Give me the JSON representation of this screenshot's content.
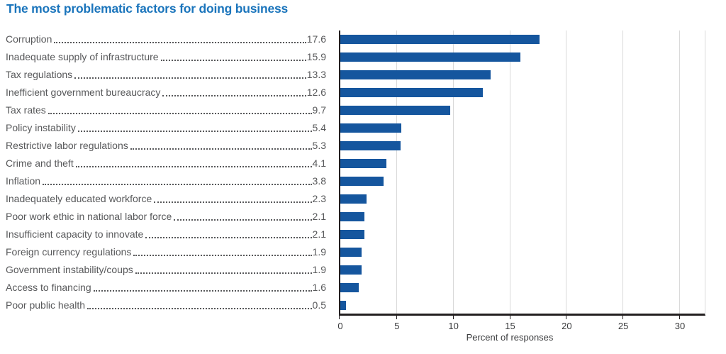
{
  "title": "The most problematic factors for doing business",
  "colors": {
    "title_blue": "#1B75BC",
    "bar_blue": "#15569E",
    "label_gray": "#57585A",
    "axis_black": "#231F20",
    "grid_gray": "#D9D9D9"
  },
  "chart_data": {
    "type": "bar",
    "orientation": "horizontal",
    "title": "The most problematic factors for doing business",
    "xlabel": "Percent of responses",
    "ylabel": "",
    "xlim": [
      0,
      30
    ],
    "xticks": [
      0,
      5,
      10,
      15,
      20,
      25,
      30
    ],
    "grid": true,
    "legend": false,
    "categories": [
      "Corruption",
      "Inadequate supply of infrastructure",
      "Tax regulations",
      "Inefficient government bureaucracy",
      "Tax rates",
      "Policy instability",
      "Restrictive labor regulations",
      "Crime and theft",
      "Inflation",
      "Inadequately educated workforce",
      "Poor work ethic in national labor force",
      "Insufficient capacity to innovate",
      "Foreign currency regulations",
      "Government instability/coups",
      "Access to financing",
      "Poor public health"
    ],
    "values": [
      17.6,
      15.9,
      13.3,
      12.6,
      9.7,
      5.4,
      5.3,
      4.1,
      3.8,
      2.3,
      2.1,
      2.1,
      1.9,
      1.9,
      1.6,
      0.5
    ]
  }
}
